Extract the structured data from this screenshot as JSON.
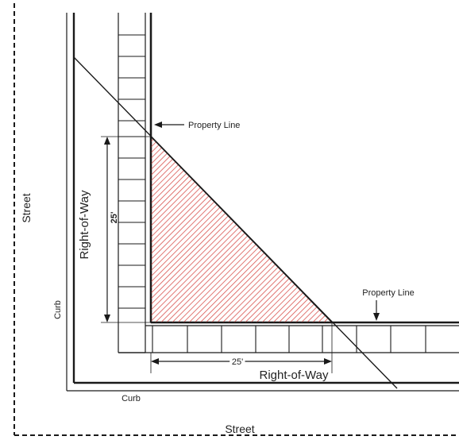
{
  "labels": {
    "street_left": "Street",
    "street_bottom": "Street",
    "curb_left": "Curb",
    "curb_bottom": "Curb",
    "row_vertical": "Right-of-Way",
    "row_horizontal": "Right-of-Way",
    "property_line_top": "Property Line",
    "property_line_right": "Property Line",
    "dim_vertical": "25'",
    "dim_horizontal": "25'"
  },
  "colors": {
    "line": "#1a1a1a",
    "hatch": "#d9534f",
    "sight_triangle_fill": "#f7d4d4"
  }
}
